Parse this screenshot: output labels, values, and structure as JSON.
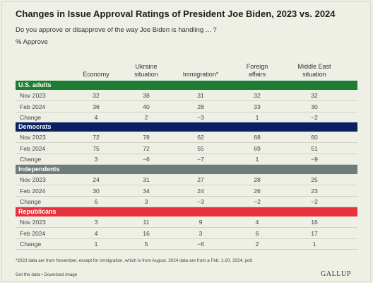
{
  "title": "Changes in Issue Approval Ratings of President Joe Biden, 2023 vs. 2024",
  "subtitle": "Do you approve or disapprove of the way Joe Biden is handling ... ?",
  "unit_label": "% Approve",
  "footnote": "*2023 data are from November, except for immigration, which is from August. 2024 data are from a Feb. 1-20, 2024, poll.",
  "links": "Get the data • Download image",
  "logo": "GALLUP",
  "chart_data": {
    "type": "table",
    "columns": [
      "Economy",
      "Ukraine situation",
      "Immigration*",
      "Foreign affairs",
      "Middle East situation"
    ],
    "column_header_lines": [
      [
        "Economy"
      ],
      [
        "Ukraine",
        "situation"
      ],
      [
        "Immigration*"
      ],
      [
        "Foreign",
        "affairs"
      ],
      [
        "Middle East",
        "situation"
      ]
    ],
    "groups": [
      {
        "name": "U.S. adults",
        "color": "#1e7d32",
        "rows": [
          {
            "label": "Nov 2023",
            "values": [
              "32",
              "38",
              "31",
              "32",
              "32"
            ]
          },
          {
            "label": "Feb 2024",
            "values": [
              "36",
              "40",
              "28",
              "33",
              "30"
            ]
          },
          {
            "label": "Change",
            "values": [
              "4",
              "2",
              "−3",
              "1",
              "−2"
            ]
          }
        ]
      },
      {
        "name": "Democrats",
        "color": "#0a2060",
        "rows": [
          {
            "label": "Nov 2023",
            "values": [
              "72",
              "78",
              "62",
              "68",
              "60"
            ]
          },
          {
            "label": "Feb 2024",
            "values": [
              "75",
              "72",
              "55",
              "69",
              "51"
            ]
          },
          {
            "label": "Change",
            "values": [
              "3",
              "−6",
              "−7",
              "1",
              "−9"
            ]
          }
        ]
      },
      {
        "name": "Independents",
        "color": "#6f7c7b",
        "rows": [
          {
            "label": "Nov 2023",
            "values": [
              "24",
              "31",
              "27",
              "28",
              "25"
            ]
          },
          {
            "label": "Feb 2024",
            "values": [
              "30",
              "34",
              "24",
              "26",
              "23"
            ]
          },
          {
            "label": "Change",
            "values": [
              "6",
              "3",
              "−3",
              "−2",
              "−2"
            ]
          }
        ]
      },
      {
        "name": "Republicans",
        "color": "#e8333f",
        "rows": [
          {
            "label": "Nov 2023",
            "values": [
              "3",
              "11",
              "9",
              "4",
              "16"
            ]
          },
          {
            "label": "Feb 2024",
            "values": [
              "4",
              "16",
              "3",
              "6",
              "17"
            ]
          },
          {
            "label": "Change",
            "values": [
              "1",
              "5",
              "−6",
              "2",
              "1"
            ]
          }
        ]
      }
    ]
  }
}
